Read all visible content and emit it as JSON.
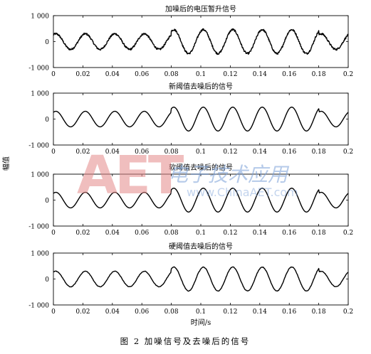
{
  "figure": {
    "caption": "图 2  加噪信号及去噪后的信号",
    "xlabel": "时间/s",
    "ylabel": "幅值"
  },
  "watermark": {
    "logo": "AET",
    "script": "电子技术应用",
    "url": "www.ChinaAET.com"
  },
  "chart_data": [
    {
      "type": "line",
      "title": "加噪后的电压暂升信号",
      "xlim": [
        0,
        0.2
      ],
      "ylim": [
        -1000,
        1000
      ],
      "x_ticks": [
        "0",
        "0.02",
        "0.04",
        "0.06",
        "0.08",
        "0.1",
        "0.12",
        "0.14",
        "0.16",
        "0.18",
        "0.2"
      ],
      "y_ticks": [
        "1 000",
        "0",
        "-1 000"
      ],
      "series": [
        {
          "frequency_hz": 50,
          "amplitude_normal": 300,
          "amplitude_sag": 460,
          "swell_interval": [
            0.08,
            0.18
          ],
          "noise": "high"
        }
      ]
    },
    {
      "type": "line",
      "title": "新阈值去噪后的信号",
      "xlim": [
        0,
        0.2
      ],
      "ylim": [
        -1000,
        1000
      ],
      "x_ticks": [
        "0",
        "0.02",
        "0.04",
        "0.06",
        "0.08",
        "0.1",
        "0.12",
        "0.14",
        "0.16",
        "0.18",
        "0.2"
      ],
      "y_ticks": [
        "1 000",
        "0",
        "-1 000"
      ],
      "series": [
        {
          "frequency_hz": 50,
          "amplitude_normal": 300,
          "amplitude_sag": 460,
          "swell_interval": [
            0.08,
            0.18
          ],
          "noise": "none"
        }
      ]
    },
    {
      "type": "line",
      "title": "软阈值去噪后的信号",
      "xlim": [
        0,
        0.2
      ],
      "ylim": [
        -1000,
        1000
      ],
      "x_ticks": [
        "0",
        "0.02",
        "0.04",
        "0.06",
        "0.08",
        "0.1",
        "0.12",
        "0.14",
        "0.16",
        "0.18",
        "0.2"
      ],
      "y_ticks": [
        "1 000",
        "0",
        "-1 000"
      ],
      "series": [
        {
          "frequency_hz": 50,
          "amplitude_normal": 300,
          "amplitude_sag": 460,
          "swell_interval": [
            0.08,
            0.18
          ],
          "noise": "none"
        }
      ]
    },
    {
      "type": "line",
      "title": "硬阈值去噪后的信号",
      "xlim": [
        0,
        0.2
      ],
      "ylim": [
        -1000,
        1000
      ],
      "x_ticks": [
        "0",
        "0.02",
        "0.04",
        "0.06",
        "0.08",
        "0.1",
        "0.12",
        "0.14",
        "0.16",
        "0.18",
        "0.2"
      ],
      "y_ticks": [
        "1 000",
        "0",
        "-1 000"
      ],
      "series": [
        {
          "frequency_hz": 50,
          "amplitude_normal": 300,
          "amplitude_sag": 460,
          "swell_interval": [
            0.08,
            0.18
          ],
          "noise": "low"
        }
      ]
    }
  ]
}
